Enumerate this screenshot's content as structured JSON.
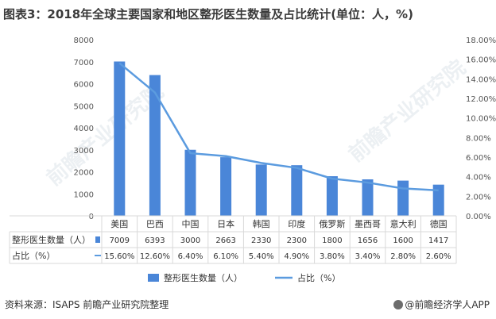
{
  "title": "图表3：2018年全球主要国家和地区整形医生数量及占比统计(单位：人，%)",
  "footer": {
    "source": "资料来源：ISAPS 前瞻产业研究院整理",
    "brand": "@前瞻经济学人APP"
  },
  "watermark": "前瞻产业研究院",
  "colors": {
    "bar": "#4a86d8",
    "line": "#5b9bdf",
    "grid": "#d9d9d9"
  },
  "chart_data": {
    "type": "bar",
    "categories": [
      "美国",
      "巴西",
      "中国",
      "日本",
      "韩国",
      "印度",
      "俄罗斯",
      "墨西哥",
      "意大利",
      "德国"
    ],
    "series": [
      {
        "name": "整形医生数量（人）",
        "type": "bar",
        "axis": "left",
        "values": [
          7009,
          6393,
          3000,
          2663,
          2330,
          2300,
          1800,
          1656,
          1600,
          1417
        ]
      },
      {
        "name": "占比（%）",
        "type": "line",
        "axis": "right",
        "values": [
          15.6,
          12.6,
          6.4,
          6.1,
          5.4,
          4.9,
          3.8,
          3.4,
          2.8,
          2.6
        ],
        "labels": [
          "15.60%",
          "12.60%",
          "6.40%",
          "6.10%",
          "5.40%",
          "4.90%",
          "3.80%",
          "3.40%",
          "2.80%",
          "2.60%"
        ]
      }
    ],
    "y_left": {
      "min": 0,
      "max": 8000,
      "step": 1000,
      "ticks": [
        "0",
        "1000",
        "2000",
        "3000",
        "4000",
        "5000",
        "6000",
        "7000",
        "8000"
      ]
    },
    "y_right": {
      "min": 0,
      "max": 18,
      "step": 2,
      "ticks": [
        "0.00%",
        "2.00%",
        "4.00%",
        "6.00%",
        "8.00%",
        "10.00%",
        "12.00%",
        "14.00%",
        "16.00%",
        "18.00%"
      ]
    },
    "table": {
      "row_labels": [
        "整形医生数量（人）",
        "占比（%）"
      ],
      "rows": [
        [
          "7009",
          "6393",
          "3000",
          "2663",
          "2330",
          "2300",
          "1800",
          "1656",
          "1600",
          "1417"
        ],
        [
          "15.60%",
          "12.60%",
          "6.40%",
          "6.10%",
          "5.40%",
          "4.90%",
          "3.80%",
          "3.40%",
          "2.80%",
          "2.60%"
        ]
      ]
    },
    "legend": [
      "整形医生数量（人）",
      "占比（%）"
    ],
    "legend_position": "bottom",
    "grid": false
  }
}
